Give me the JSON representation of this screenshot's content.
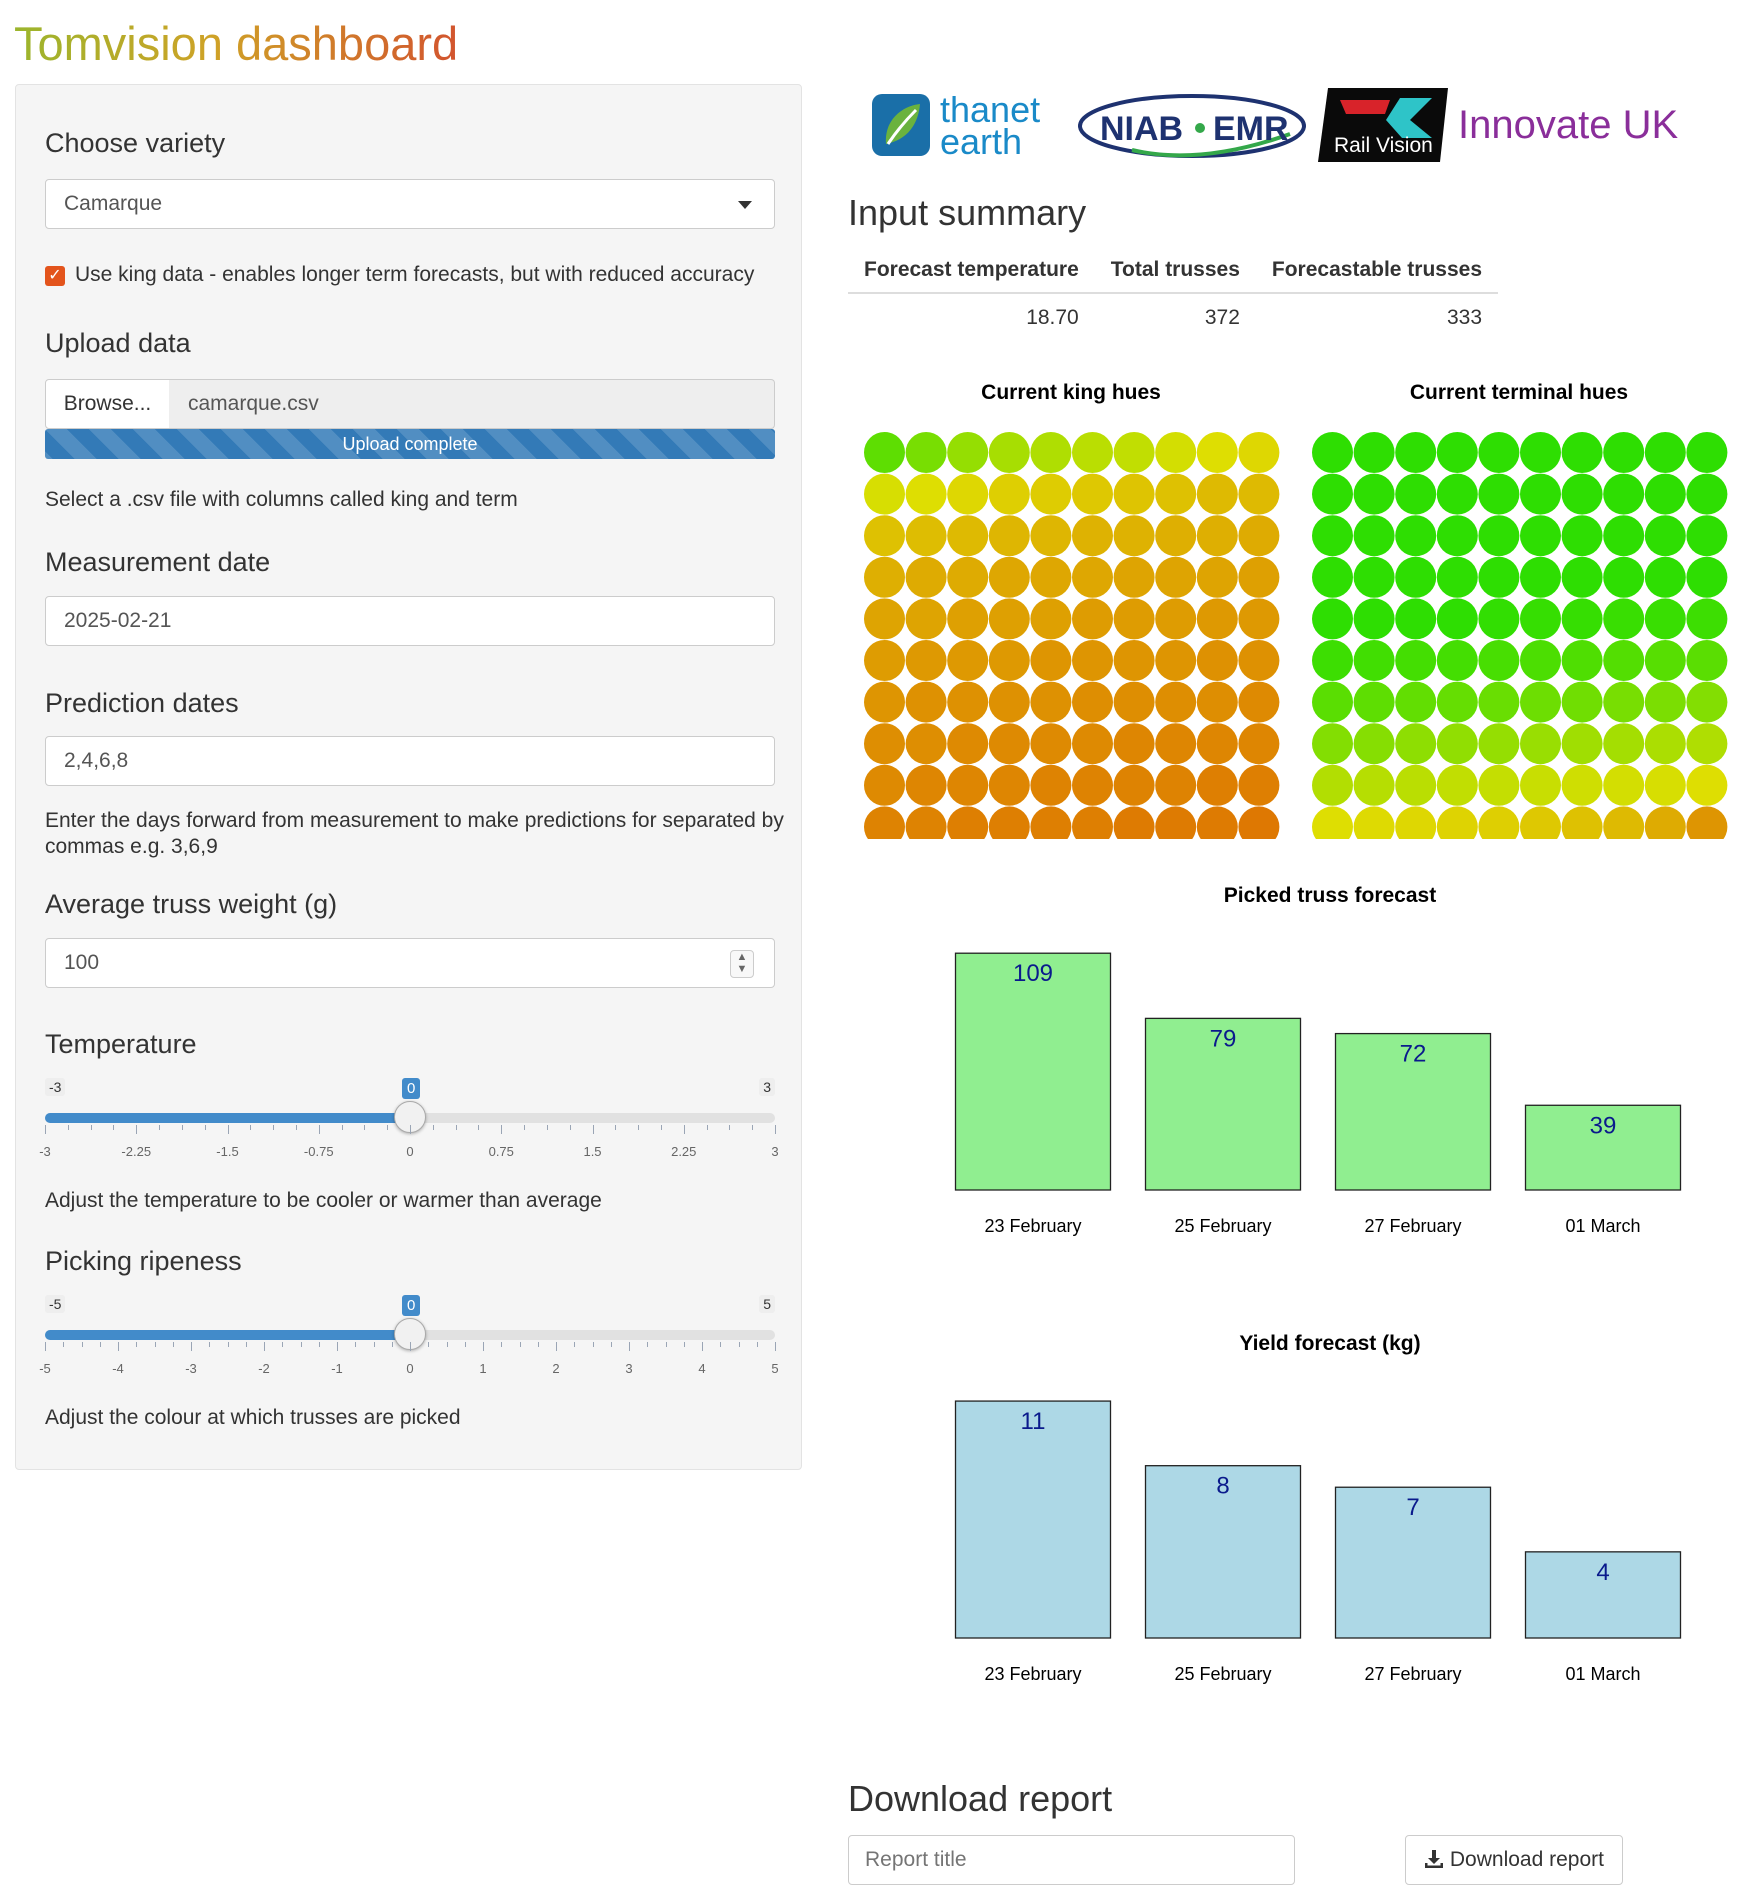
{
  "app": {
    "title": "Tomvision dashboard"
  },
  "sidebar": {
    "variety": {
      "label": "Choose variety",
      "value": "Camarque"
    },
    "king_checkbox": {
      "checked": true,
      "label": "Use king data - enables longer term forecasts, but with reduced accuracy"
    },
    "upload": {
      "label": "Upload data",
      "browse_label": "Browse...",
      "filename": "camarque.csv",
      "status": "Upload complete",
      "progress": 1.0,
      "help": "Select a .csv file with columns called king and term"
    },
    "measurement": {
      "label": "Measurement date",
      "value": "2025-02-21"
    },
    "prediction": {
      "label": "Prediction dates",
      "value": "2,4,6,8",
      "help": "Enter the days forward from measurement to make predictions for separated by commas e.g. 3,6,9"
    },
    "truss_weight": {
      "label": "Average truss weight (g)",
      "value": "100"
    },
    "temperature": {
      "label": "Temperature",
      "min": "-3",
      "max": "3",
      "value": "0",
      "value_num": 0,
      "min_num": -3,
      "max_num": 3,
      "ticks": [
        "-3",
        "-2.25",
        "-1.5",
        "-0.75",
        "0",
        "0.75",
        "1.5",
        "2.25",
        "3"
      ],
      "help": "Adjust the temperature to be cooler or warmer than average"
    },
    "ripeness": {
      "label": "Picking ripeness",
      "min": "-5",
      "max": "5",
      "value": "0",
      "value_num": 0,
      "min_num": -5,
      "max_num": 5,
      "ticks": [
        "-5",
        "-4",
        "-3",
        "-2",
        "-1",
        "0",
        "1",
        "2",
        "3",
        "4",
        "5"
      ],
      "help": "Adjust the colour at which trusses are picked"
    }
  },
  "logos": {
    "thanet_1": "thanet",
    "thanet_2": "earth",
    "niab": "NIAB",
    "emr": "EMR",
    "railvision": "Rail Vision",
    "innovate": "Innovate UK"
  },
  "summary": {
    "title": "Input summary",
    "columns": [
      "Forecast temperature",
      "Total trusses",
      "Forecastable trusses"
    ],
    "values": [
      "18.70",
      "372",
      "333"
    ]
  },
  "hues": {
    "king_title": "Current king hues",
    "terminal_title": "Current terminal hues",
    "grid_rows": 10,
    "grid_cols": 10,
    "king_hues": [
      [
        95,
        88,
        80,
        75,
        73,
        70,
        68,
        63,
        60,
        58
      ],
      [
        62,
        60,
        58,
        56,
        55,
        54,
        53,
        52,
        50,
        50
      ],
      [
        52,
        51,
        50,
        49,
        49,
        48,
        48,
        47,
        47,
        46
      ],
      [
        47,
        46,
        46,
        45,
        45,
        45,
        44,
        44,
        44,
        43
      ],
      [
        44,
        44,
        43,
        43,
        43,
        42,
        42,
        42,
        41,
        41
      ],
      [
        42,
        41,
        41,
        41,
        40,
        40,
        40,
        40,
        39,
        39
      ],
      [
        40,
        39,
        39,
        39,
        39,
        38,
        38,
        38,
        38,
        37
      ],
      [
        38,
        38,
        37,
        37,
        37,
        37,
        36,
        36,
        36,
        36
      ],
      [
        37,
        36,
        36,
        36,
        35,
        35,
        35,
        35,
        34,
        34
      ],
      [
        35,
        35,
        34,
        34,
        34,
        34,
        33,
        33,
        33,
        32
      ]
    ],
    "terminal_hues": [
      [
        108,
        108,
        108,
        108,
        108,
        108,
        108,
        108,
        108,
        108
      ],
      [
        108,
        108,
        108,
        108,
        108,
        108,
        108,
        108,
        108,
        108
      ],
      [
        108,
        108,
        108,
        108,
        108,
        108,
        108,
        108,
        108,
        108
      ],
      [
        108,
        108,
        108,
        108,
        108,
        108,
        108,
        108,
        108,
        108
      ],
      [
        108,
        108,
        108,
        108,
        107,
        106,
        106,
        105,
        105,
        104
      ],
      [
        104,
        103,
        102,
        102,
        101,
        100,
        99,
        98,
        97,
        96
      ],
      [
        96,
        95,
        94,
        93,
        92,
        91,
        90,
        88,
        87,
        85
      ],
      [
        85,
        84,
        82,
        81,
        80,
        79,
        77,
        76,
        74,
        73
      ],
      [
        72,
        71,
        70,
        68,
        67,
        66,
        64,
        63,
        62,
        60
      ],
      [
        60,
        59,
        58,
        57,
        56,
        54,
        52,
        50,
        46,
        40
      ]
    ]
  },
  "chart_data": [
    {
      "type": "bar",
      "title": "Picked truss forecast",
      "categories": [
        "23 February",
        "25 February",
        "27 February",
        "01 March"
      ],
      "values": [
        109,
        79,
        72,
        39
      ],
      "ylim": [
        0,
        116
      ],
      "fill": "#90ee90"
    },
    {
      "type": "bar",
      "title": "Yield forecast (kg)",
      "categories": [
        "23 February",
        "25 February",
        "27 February",
        "01 March"
      ],
      "values": [
        11,
        8,
        7,
        4
      ],
      "ylim": [
        0,
        11.7
      ],
      "fill": "#add8e6"
    }
  ],
  "report": {
    "title": "Download report",
    "input_placeholder": "Report title",
    "button_label": "Download report"
  }
}
